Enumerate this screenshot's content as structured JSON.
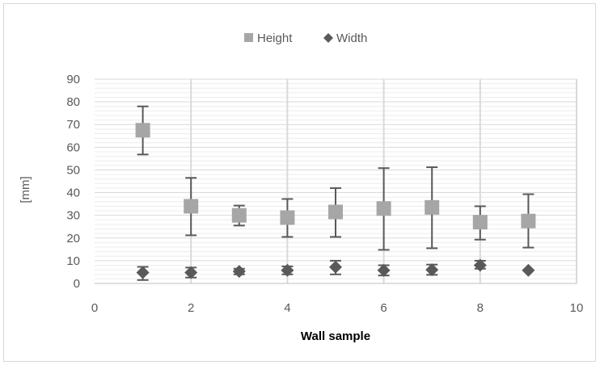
{
  "chart_data": {
    "type": "scatter",
    "xlabel": "Wall sample",
    "ylabel": "[mm]",
    "xlim": [
      0,
      10
    ],
    "ylim": [
      0,
      90
    ],
    "xticks": [
      0,
      2,
      4,
      6,
      8,
      10
    ],
    "yticks": [
      0,
      10,
      20,
      30,
      40,
      50,
      60,
      70,
      80,
      90
    ],
    "grid": {
      "vertical_major": true,
      "horizontal_minor": true
    },
    "legend_position": "top",
    "series": [
      {
        "name": "Height",
        "marker": "square",
        "color": "#a6a6a6",
        "x": [
          1,
          2,
          3,
          4,
          5,
          6,
          7,
          8,
          9
        ],
        "y": [
          67.5,
          34,
          30,
          29,
          31.5,
          33,
          33.5,
          27,
          27.5
        ],
        "err_low": [
          56.8,
          21.2,
          25.5,
          20.5,
          20.5,
          14.8,
          15.5,
          19.3,
          15.8
        ],
        "err_high": [
          78,
          46.5,
          34.3,
          37.2,
          42,
          50.8,
          51.2,
          34,
          39.3
        ]
      },
      {
        "name": "Width",
        "marker": "diamond",
        "color": "#595959",
        "x": [
          1,
          2,
          3,
          4,
          5,
          6,
          7,
          8,
          9
        ],
        "y": [
          4.8,
          4.8,
          5.3,
          5.8,
          7.2,
          5.8,
          6,
          8,
          5.8
        ],
        "err_low": [
          1.5,
          2.6,
          4,
          4,
          4,
          3.5,
          3.8,
          6.5,
          5.8
        ],
        "err_high": [
          7.3,
          7,
          6.5,
          7.5,
          10,
          8,
          8.3,
          10,
          5.8
        ]
      }
    ]
  }
}
